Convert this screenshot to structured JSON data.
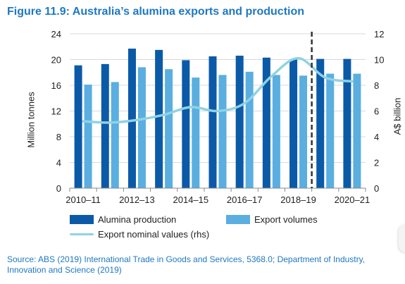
{
  "title": "Figure 11.9: Australia’s alumina exports and production",
  "source_text": "Source: ABS (2019) International Trade in Goods and Services, 5368.0; Department of Industry, Innovation and Science (2019)",
  "legend": {
    "production": "Alumina production",
    "exports": "Export volumes",
    "values": "Export nominal values (rhs)"
  },
  "colors": {
    "title": "#1f78c1",
    "production": "#0b5aa8",
    "exports": "#5aaee0",
    "values": "#8fd3e3",
    "forecast_line": "#333333",
    "grid": "#d9d9d9"
  },
  "chart_data": {
    "type": "bar",
    "title": "Figure 11.9: Australia’s alumina exports and production",
    "categories": [
      "2010–11",
      "2011–12",
      "2012–13",
      "2013–14",
      "2014–15",
      "2015–16",
      "2016–17",
      "2017–18",
      "2018–19",
      "2019–20",
      "2020–21"
    ],
    "tick_labels": [
      "2010–11",
      "",
      "2012–13",
      "",
      "2014–15",
      "",
      "2016–17",
      "",
      "2018–19",
      "",
      "2020–21"
    ],
    "series": [
      {
        "name": "Alumina production",
        "axis": "left",
        "type": "bar",
        "values": [
          19.1,
          19.3,
          21.7,
          21.5,
          19.9,
          20.5,
          20.6,
          20.3,
          20.0,
          20.1,
          20.1
        ]
      },
      {
        "name": "Export volumes",
        "axis": "left",
        "type": "bar",
        "values": [
          16.1,
          16.5,
          18.8,
          18.5,
          17.2,
          17.6,
          18.1,
          17.6,
          17.5,
          17.8,
          17.8
        ]
      },
      {
        "name": "Export nominal values (rhs)",
        "axis": "right",
        "type": "line",
        "values": [
          5.2,
          5.1,
          5.3,
          5.7,
          6.3,
          6.0,
          6.6,
          8.7,
          10.1,
          8.6,
          8.3
        ]
      }
    ],
    "ylabel": "Million tonnes",
    "ylabel_right": "A$ billion",
    "ylim": [
      0,
      24
    ],
    "ylim_right": [
      0,
      12
    ],
    "yticks": [
      0,
      4,
      8,
      12,
      16,
      20,
      24
    ],
    "yticks_right": [
      0,
      2,
      4,
      6,
      8,
      10,
      12
    ],
    "forecast_divider_after": "2018–19",
    "grid": true,
    "legend_position": "bottom"
  }
}
